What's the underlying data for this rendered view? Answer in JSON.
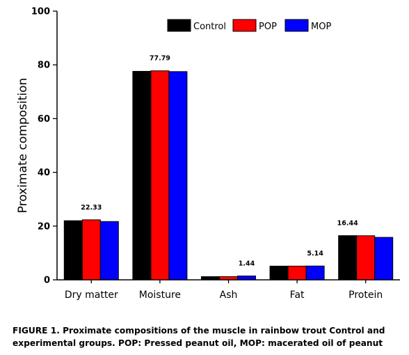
{
  "chart_data": {
    "type": "bar",
    "title": "",
    "xlabel": "",
    "ylabel": "Proximate composition",
    "ylim": [
      0,
      100
    ],
    "yticks": [
      0,
      20,
      40,
      60,
      80,
      100
    ],
    "categories": [
      "Dry matter",
      "Moisture",
      "Ash",
      "Fat",
      "Protein"
    ],
    "series": [
      {
        "name": "Control",
        "color": "#000000",
        "values": [
          22.0,
          77.6,
          1.2,
          5.1,
          16.44
        ]
      },
      {
        "name": "POP",
        "color": "#ff0000",
        "values": [
          22.33,
          77.79,
          1.2,
          5.1,
          16.4
        ]
      },
      {
        "name": "MOP",
        "color": "#0000ff",
        "values": [
          21.7,
          77.5,
          1.44,
          5.14,
          15.8
        ]
      }
    ],
    "data_labels": [
      {
        "category": "Dry matter",
        "text": "22.33",
        "value": 22.33
      },
      {
        "category": "Moisture",
        "text": "77.79",
        "value": 77.79
      },
      {
        "category": "Ash",
        "text": "1.44",
        "value": 1.44
      },
      {
        "category": "Fat",
        "text": "5.14",
        "value": 5.14
      },
      {
        "category": "Protein",
        "text": "16.44",
        "value": 16.44
      }
    ],
    "legend_position": "top-right",
    "grid": false
  },
  "caption": {
    "line1": "FIGURE 1. Proximate compositions of the muscle in rainbow trout Control and",
    "line2": "experimental groups.  POP: Pressed peanut oil, MOP: macerated oil of peanut"
  }
}
